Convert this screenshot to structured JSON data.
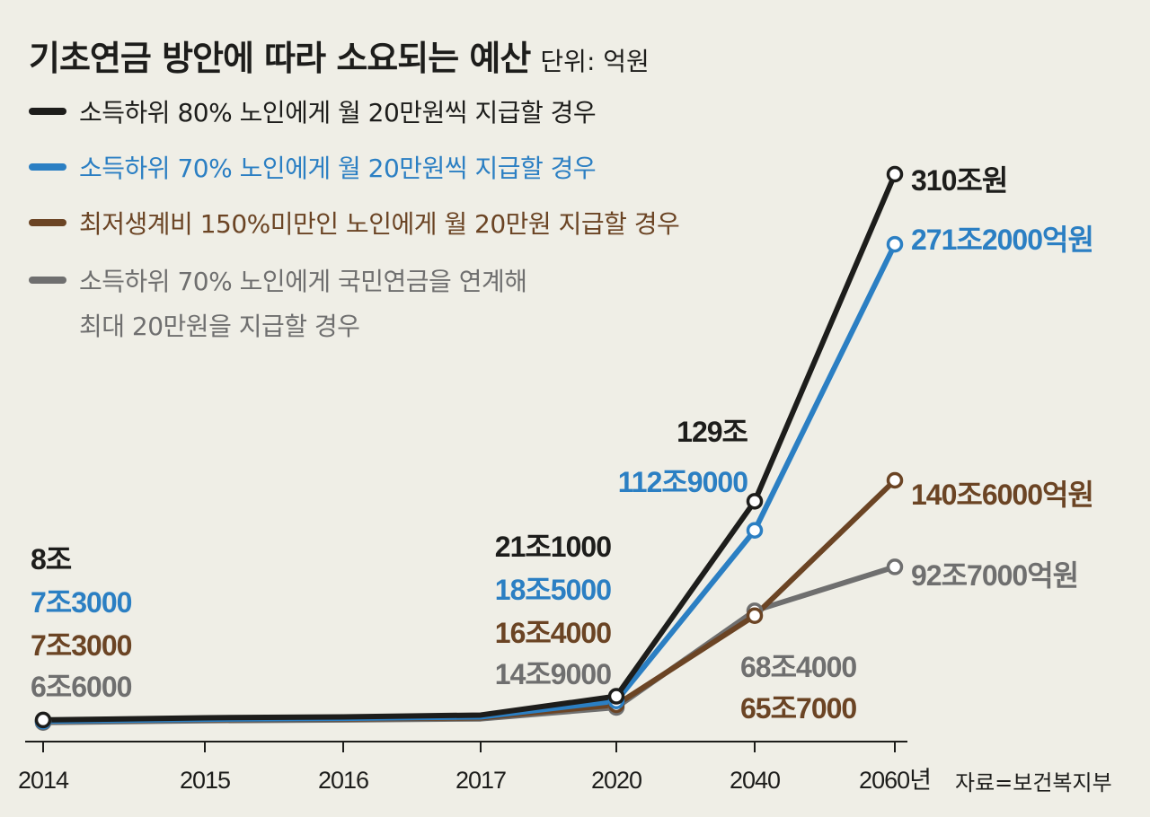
{
  "title": "기초연금 방안에 따라 소요되는 예산",
  "unit": "단위: 억원",
  "source": "자료=보건복지부",
  "colors": {
    "background": "#efeee6",
    "black": "#1d1d1b",
    "blue": "#2b7fc3",
    "brown": "#6b4424",
    "gray": "#6f6f6f"
  },
  "legend": [
    {
      "text": "소득하위 80% 노인에게 월 20만원씩 지급할 경우",
      "color": "#1d1d1b"
    },
    {
      "text": "소득하위 70% 노인에게 월 20만원씩 지급할 경우",
      "color": "#2b7fc3"
    },
    {
      "text": "최저생계비 150%미만인 노인에게 월 20만원 지급할 경우",
      "color": "#6b4424"
    },
    {
      "text": "소득하위 70% 노인에게 국민연금을 연계해",
      "text2": "최대 20만원을 지급할 경우",
      "color": "#6f6f6f"
    }
  ],
  "chart_data": {
    "type": "line",
    "categories": [
      "2014",
      "2015",
      "2016",
      "2017",
      "2020",
      "2040",
      "2060년"
    ],
    "value_unit": "억원",
    "series": [
      {
        "color": "#1d1d1b",
        "values": [
          80000,
          92000,
          97000,
          107000,
          211000,
          1290000,
          3100000
        ],
        "labels": {
          "0": "8조",
          "4": "21조1000",
          "5": "129조",
          "6": "310조원"
        }
      },
      {
        "color": "#2b7fc3",
        "values": [
          73000,
          84000,
          89000,
          97000,
          185000,
          1129000,
          2712000
        ],
        "labels": {
          "0": "7조3000",
          "4": "18조5000",
          "5": "112조9000",
          "6": "271조2000억원"
        }
      },
      {
        "color": "#6b4424",
        "values": [
          73000,
          82000,
          86000,
          92000,
          164000,
          657000,
          1406000
        ],
        "labels": {
          "0": "7조3000",
          "4": "16조4000",
          "5": "65조7000",
          "6": "140조6000억원"
        }
      },
      {
        "color": "#6f6f6f",
        "values": [
          66000,
          76000,
          80000,
          86000,
          149000,
          684000,
          927000
        ],
        "labels": {
          "0": "6조6000",
          "4": "14조9000",
          "5": "68조4000",
          "6": "92조7000억원"
        }
      }
    ]
  }
}
